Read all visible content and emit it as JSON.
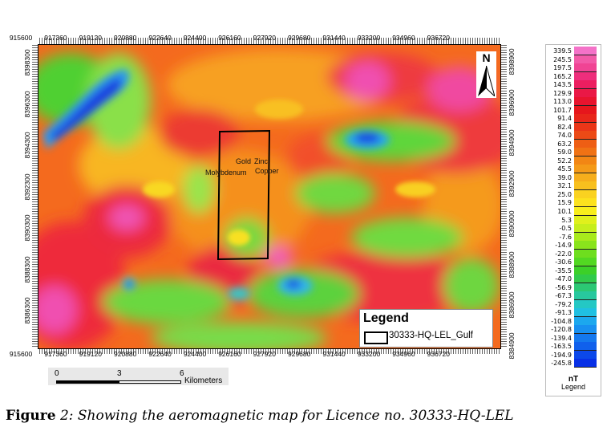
{
  "x_ticks": [
    "915600",
    "917360",
    "919120",
    "920880",
    "922640",
    "924400",
    "926160",
    "927920",
    "929680",
    "931440",
    "933200",
    "934960",
    "936720"
  ],
  "y_ticks": [
    "8398300",
    "8396300",
    "8394300",
    "8392300",
    "8390300",
    "8388300",
    "8386300"
  ],
  "y_ticks_right": [
    "8398900",
    "8396900",
    "8394900",
    "8392900",
    "8390900",
    "8388900",
    "8386900",
    "8384900"
  ],
  "north_label": "N",
  "map_labels": {
    "gold": "Gold",
    "zinc": "Zinc",
    "copper": "Copper",
    "molybdenum": "Molybdenum"
  },
  "legend": {
    "title": "Legend",
    "item": "30333-HQ-LEL_Gulf"
  },
  "scale_bar": {
    "labels": [
      "0",
      "3",
      "6"
    ],
    "unit": "Kilometers"
  },
  "colorbar": {
    "values": [
      "339.5",
      "245.5",
      "197.5",
      "165.2",
      "143.5",
      "129.9",
      "113.0",
      "101.7",
      "91.4",
      "82.4",
      "74.0",
      "63.2",
      "59.0",
      "52.2",
      "45.5",
      "39.0",
      "32.1",
      "25.0",
      "15.9",
      "10.1",
      "5.3",
      "-0.5",
      "-7.6",
      "-14.9",
      "-22.0",
      "-30.6",
      "-35.5",
      "-47.0",
      "-56.9",
      "-67.3",
      "-79.2",
      "-91.3",
      "-104.8",
      "-120.8",
      "-139.4",
      "-163.5",
      "-194.9",
      "-245.8"
    ],
    "colors": [
      "#f472c8",
      "#f25aa8",
      "#f04494",
      "#ee2e7c",
      "#ec1e60",
      "#ea1846",
      "#e8142e",
      "#e6161c",
      "#e8261a",
      "#ea3618",
      "#ec4a16",
      "#ee5e14",
      "#f07214",
      "#f28614",
      "#f49a18",
      "#f6ae1c",
      "#f8c01e",
      "#fad220",
      "#fce21e",
      "#f8ee1c",
      "#e0f01c",
      "#c6ee1c",
      "#a8ea1c",
      "#8ae41c",
      "#6ede1e",
      "#52d822",
      "#3cd028",
      "#30ca4a",
      "#2cc874",
      "#28c89e",
      "#24c8c4",
      "#20c0e2",
      "#1ca8ee",
      "#1890f0",
      "#1478ee",
      "#1060ec",
      "#0c48ea",
      "#0830e6"
    ],
    "unit": "nT",
    "label": "Legend"
  },
  "caption": {
    "label": "Figure",
    "number": " 2",
    "text": ": Showing the aeromagnetic map for Licence no. 30333-HQ-LEL"
  }
}
